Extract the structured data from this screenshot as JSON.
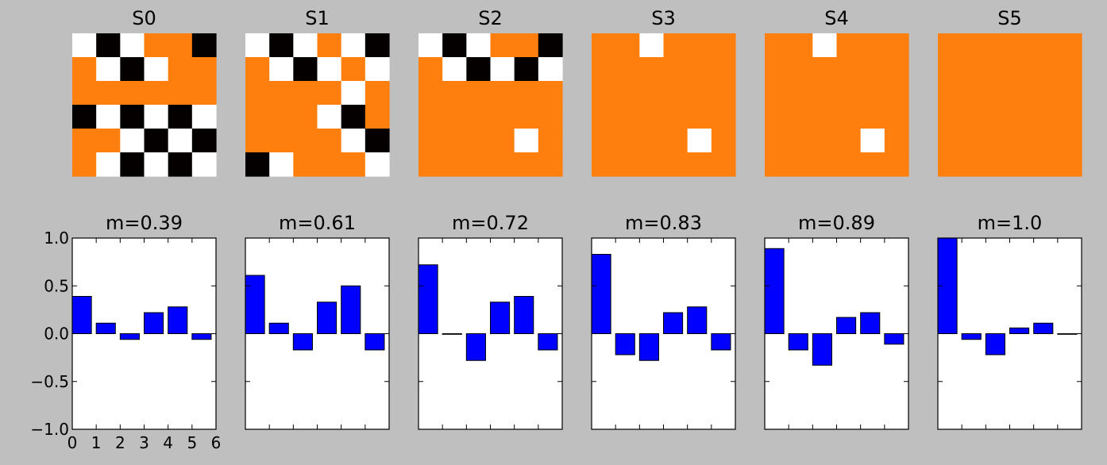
{
  "figure": {
    "background": "#bfbfbf",
    "colors": {
      "flipped": "#ff7f0e",
      "dark": "#050000",
      "light": "#ffffff",
      "bar": "#0000ff",
      "bar_edge": "#000000"
    }
  },
  "chart_data": [
    {
      "type": "heatmap",
      "title": "S0",
      "grid": [
        [
          1,
          0,
          1,
          1,
          0,
          0
        ],
        [
          1,
          1,
          0,
          1,
          1,
          0
        ],
        [
          0,
          1,
          0,
          1,
          0,
          1
        ],
        [
          0,
          1,
          0,
          1,
          0,
          1
        ],
        [
          0,
          1,
          1,
          0,
          1,
          0
        ],
        [
          1,
          1,
          0,
          1,
          0,
          1
        ]
      ]
    },
    {
      "type": "heatmap",
      "title": "S1",
      "grid": [
        [
          1,
          0,
          1,
          1,
          1,
          0
        ],
        [
          1,
          1,
          0,
          1,
          1,
          1
        ],
        [
          0,
          1,
          0,
          1,
          1,
          1
        ],
        [
          1,
          0,
          1,
          1,
          0,
          0
        ],
        [
          0,
          1,
          0,
          1,
          1,
          0
        ],
        [
          0,
          1,
          1,
          0,
          1,
          1
        ]
      ]
    },
    {
      "type": "heatmap",
      "title": "S2",
      "grid": [
        [
          1,
          0,
          1,
          1,
          0,
          0
        ],
        [
          1,
          1,
          0,
          1,
          0,
          1
        ],
        [
          0,
          1,
          0,
          1,
          0,
          1
        ],
        [
          1,
          0,
          1,
          0,
          1,
          0
        ],
        [
          0,
          1,
          0,
          1,
          1,
          1
        ],
        [
          1,
          0,
          1,
          0,
          1,
          0
        ]
      ]
    },
    {
      "type": "heatmap",
      "title": "S3",
      "grid": [
        [
          0,
          1,
          1,
          1,
          0,
          1
        ],
        [
          1,
          0,
          1,
          0,
          1,
          0
        ],
        [
          0,
          1,
          0,
          1,
          0,
          1
        ],
        [
          1,
          0,
          1,
          0,
          1,
          0
        ],
        [
          0,
          1,
          0,
          1,
          1,
          1
        ],
        [
          1,
          0,
          1,
          0,
          1,
          0
        ]
      ]
    },
    {
      "type": "heatmap",
      "title": "S4",
      "grid": [
        [
          0,
          1,
          1,
          1,
          0,
          1
        ],
        [
          1,
          0,
          1,
          0,
          1,
          0
        ],
        [
          0,
          1,
          0,
          1,
          0,
          1
        ],
        [
          1,
          0,
          1,
          0,
          1,
          0
        ],
        [
          0,
          1,
          0,
          1,
          1,
          1
        ],
        [
          1,
          0,
          1,
          0,
          1,
          0
        ]
      ]
    },
    {
      "type": "heatmap",
      "title": "S5",
      "grid": [
        [
          0,
          1,
          0,
          1,
          0,
          1
        ],
        [
          1,
          0,
          1,
          0,
          1,
          0
        ],
        [
          0,
          1,
          0,
          1,
          0,
          1
        ],
        [
          1,
          0,
          1,
          0,
          1,
          0
        ],
        [
          0,
          1,
          0,
          1,
          0,
          1
        ],
        [
          1,
          0,
          1,
          0,
          1,
          0
        ]
      ]
    },
    {
      "type": "bar",
      "title": "m=0.39",
      "x": [
        0,
        1,
        2,
        3,
        4,
        5
      ],
      "values": [
        0.39,
        0.11,
        -0.06,
        0.22,
        0.28,
        -0.06
      ],
      "xlim": [
        0,
        6
      ],
      "ylim": [
        -1.0,
        1.0
      ],
      "xticks": [
        "0",
        "1",
        "2",
        "3",
        "4",
        "5",
        "6"
      ],
      "yticks": [
        "1.0",
        "0.5",
        "0.0",
        "−0.5",
        "−1.0"
      ]
    },
    {
      "type": "bar",
      "title": "m=0.61",
      "x": [
        0,
        1,
        2,
        3,
        4,
        5
      ],
      "values": [
        0.61,
        0.11,
        -0.17,
        0.33,
        0.5,
        -0.17
      ],
      "xlim": [
        0,
        6
      ],
      "ylim": [
        -1.0,
        1.0
      ]
    },
    {
      "type": "bar",
      "title": "m=0.72",
      "x": [
        0,
        1,
        2,
        3,
        4,
        5
      ],
      "values": [
        0.72,
        0.0,
        -0.28,
        0.33,
        0.39,
        -0.17
      ],
      "xlim": [
        0,
        6
      ],
      "ylim": [
        -1.0,
        1.0
      ]
    },
    {
      "type": "bar",
      "title": "m=0.83",
      "x": [
        0,
        1,
        2,
        3,
        4,
        5
      ],
      "values": [
        0.83,
        -0.22,
        -0.28,
        0.22,
        0.28,
        -0.17
      ],
      "xlim": [
        0,
        6
      ],
      "ylim": [
        -1.0,
        1.0
      ]
    },
    {
      "type": "bar",
      "title": "m=0.89",
      "x": [
        0,
        1,
        2,
        3,
        4,
        5
      ],
      "values": [
        0.89,
        -0.17,
        -0.33,
        0.17,
        0.22,
        -0.11
      ],
      "xlim": [
        0,
        6
      ],
      "ylim": [
        -1.0,
        1.0
      ]
    },
    {
      "type": "bar",
      "title": "m=1.0",
      "x": [
        0,
        1,
        2,
        3,
        4,
        5
      ],
      "values": [
        1.0,
        -0.06,
        -0.22,
        0.06,
        0.11,
        0.0
      ],
      "xlim": [
        0,
        6
      ],
      "ylim": [
        -1.0,
        1.0
      ]
    }
  ]
}
